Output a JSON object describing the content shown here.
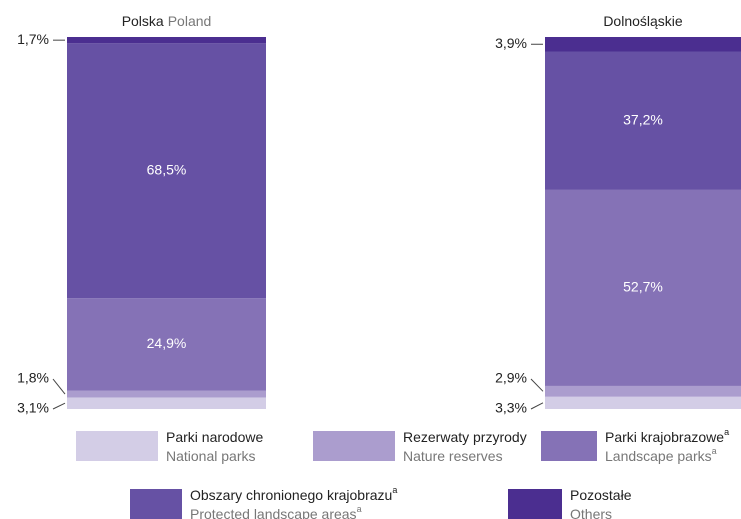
{
  "chart_data": {
    "type": "stacked_bar_100",
    "categories": [
      "Polska",
      "Dolnośląskie"
    ],
    "category_translations": [
      "Poland",
      null
    ],
    "ylim": [
      0,
      100
    ],
    "series": [
      {
        "name": "Parki narodowe",
        "name_en": "National parks",
        "color": "#d3cde6",
        "values": [
          3.1,
          3.3
        ],
        "value_labels": [
          "3,1%",
          "3,3%"
        ]
      },
      {
        "name": "Rezerwaty przyrody",
        "name_en": "Nature reserves",
        "color": "#ab9dce",
        "values": [
          1.8,
          2.9
        ],
        "value_labels": [
          "1,8%",
          "2,9%"
        ]
      },
      {
        "name": "Parki krajobrazowe",
        "footnote": "a",
        "name_en": "Landscape parks",
        "footnote_en": "a",
        "color": "#8572b6",
        "values": [
          24.9,
          52.7
        ],
        "value_labels": [
          "24,9%",
          "52,7%"
        ]
      },
      {
        "name": "Obszary chronionego krajobrazu",
        "footnote": "a",
        "name_en": "Protected landscape areas",
        "footnote_en": "a",
        "color": "#6651a4",
        "values": [
          68.5,
          37.2
        ],
        "value_labels": [
          "68,5%",
          "37,2%"
        ]
      },
      {
        "name": "Pozostałe",
        "name_en": "Others",
        "color": "#4b2e90",
        "values": [
          1.7,
          3.9
        ],
        "value_labels": [
          "1,7%",
          "3,9%"
        ]
      }
    ]
  }
}
